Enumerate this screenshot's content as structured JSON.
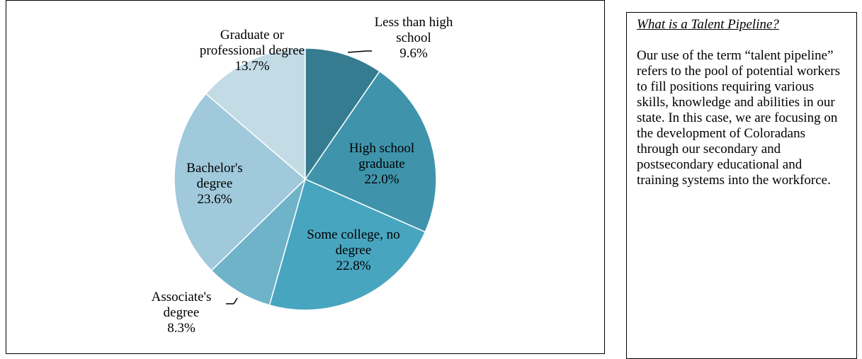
{
  "chart_data": {
    "type": "pie",
    "categories": [
      "Less than high school",
      "High school graduate",
      "Some college, no degree",
      "Associate's degree",
      "Bachelor's degree",
      "Graduate or professional degree"
    ],
    "values": [
      9.6,
      22.0,
      22.8,
      8.3,
      23.6,
      13.7
    ],
    "value_labels": [
      "9.6%",
      "22.0%",
      "22.8%",
      "8.3%",
      "23.6%",
      "13.7%"
    ],
    "colors": [
      "#357c90",
      "#3f94ab",
      "#48a5bf",
      "#6fb3c9",
      "#a0c9db",
      "#c3dbe5"
    ]
  },
  "sidebar": {
    "title": "What is a Talent Pipeline?",
    "text": "Our use of the term “talent pipeline” refers to the pool of potential workers to fill positions requiring various skills, knowledge and abilities in our state. In this case, we are focusing on the development of Coloradans through our secondary and postsecondary educational and training systems into the workforce."
  }
}
